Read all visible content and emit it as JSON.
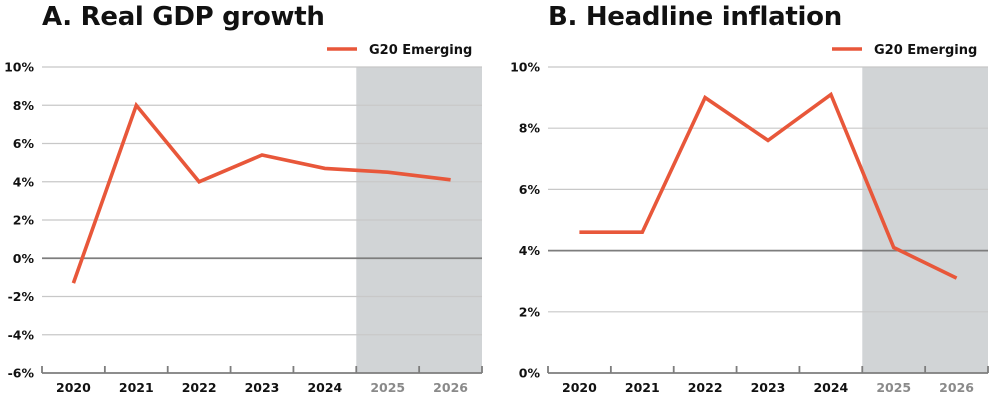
{
  "chart_data": [
    {
      "type": "line",
      "title": "A. Real GDP growth",
      "xlabel": "",
      "ylabel": "",
      "categories": [
        "2020",
        "2021",
        "2022",
        "2023",
        "2024",
        "2025",
        "2026"
      ],
      "forecast_categories": [
        "2025",
        "2026"
      ],
      "series": [
        {
          "name": "G20 Emerging",
          "color": "#e8573a",
          "values": [
            -1.3,
            8.0,
            4.0,
            5.4,
            4.7,
            4.5,
            4.1
          ]
        }
      ],
      "yticks": [
        "10%",
        "8%",
        "6%",
        "4%",
        "2%",
        "0%",
        "-2%",
        "-4%",
        "-6%"
      ],
      "ylim": [
        -6,
        10
      ],
      "reference_line": 0,
      "grid": true,
      "legend_position": "top-right",
      "shaded_region": {
        "from": "2025",
        "to": "2026",
        "color": "#d1d4d6"
      }
    },
    {
      "type": "line",
      "title": "B. Headline inflation",
      "xlabel": "",
      "ylabel": "",
      "categories": [
        "2020",
        "2021",
        "2022",
        "2023",
        "2024",
        "2025",
        "2026"
      ],
      "forecast_categories": [
        "2025",
        "2026"
      ],
      "series": [
        {
          "name": "G20 Emerging",
          "color": "#e8573a",
          "values": [
            4.6,
            4.6,
            9.0,
            7.6,
            9.1,
            4.1,
            3.1
          ]
        }
      ],
      "yticks": [
        "10%",
        "8%",
        "6%",
        "4%",
        "2%",
        "0%"
      ],
      "ylim": [
        0,
        10
      ],
      "reference_line": 4,
      "grid": true,
      "legend_position": "top-right",
      "shaded_region": {
        "from": "2025",
        "to": "2026",
        "color": "#d1d4d6"
      }
    }
  ],
  "panels": {
    "a": {
      "title": "A. Real GDP growth",
      "legend": "G20 Emerging"
    },
    "b": {
      "title": "B. Headline inflation",
      "legend": "G20 Emerging"
    }
  }
}
